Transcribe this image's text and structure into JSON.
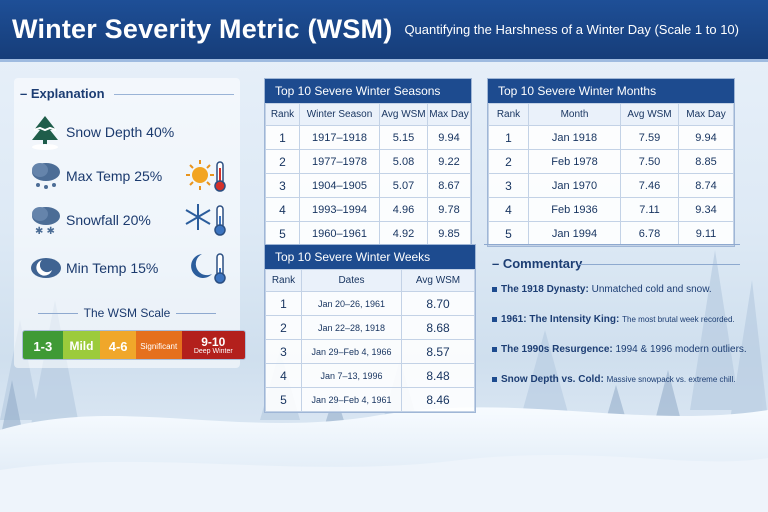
{
  "header": {
    "title": "Winter Severity Metric (WSM)",
    "subtitle": "Quantifying the Harshness of a Winter Day (Scale 1 to 10)"
  },
  "explanation": {
    "heading": "Explanation",
    "factors": [
      {
        "label": "Snow Depth 40%",
        "icon": "pine-tree-icon"
      },
      {
        "label": "Max Temp 25%",
        "icon": "sun-thermometer-icon"
      },
      {
        "label": "Snowfall 20%",
        "icon": "snowflake-thermometer-icon"
      },
      {
        "label": "Min Temp 15%",
        "icon": "moon-thermometer-icon"
      }
    ]
  },
  "scale": {
    "title": "The WSM Scale",
    "segments": [
      {
        "range": "1-3",
        "color": "#3f9a35"
      },
      {
        "range": "Mild",
        "color": "#9ccb3b"
      },
      {
        "range": "4-6",
        "color": "#f0a72a"
      },
      {
        "range": "Significant",
        "color": "#e5701d"
      },
      {
        "range": "9-10",
        "label": "Deep Winter",
        "color": "#b3201c"
      }
    ]
  },
  "seasons": {
    "title": "Top 10 Severe Winter Seasons",
    "columns": [
      "Rank",
      "Winter Season",
      "Avg WSM",
      "Max Day"
    ],
    "rows": [
      [
        "1",
        "1917–1918",
        "5.15",
        "9.94"
      ],
      [
        "2",
        "1977–1978",
        "5.08",
        "9.22"
      ],
      [
        "3",
        "1904–1905",
        "5.07",
        "8.67"
      ],
      [
        "4",
        "1993–1994",
        "4.96",
        "9.78"
      ],
      [
        "5",
        "1960–1961",
        "4.92",
        "9.85"
      ]
    ]
  },
  "months": {
    "title": "Top 10 Severe Winter Months",
    "columns": [
      "Rank",
      "Month",
      "Avg WSM",
      "Max Day"
    ],
    "rows": [
      [
        "1",
        "Jan 1918",
        "7.59",
        "9.94"
      ],
      [
        "2",
        "Feb 1978",
        "7.50",
        "8.85"
      ],
      [
        "3",
        "Jan 1970",
        "7.46",
        "8.74"
      ],
      [
        "4",
        "Feb 1936",
        "7.11",
        "9.34"
      ],
      [
        "5",
        "Jan 1994",
        "6.78",
        "9.11"
      ]
    ]
  },
  "weeks": {
    "title": "Top 10 Severe Winter Weeks",
    "columns": [
      "Rank",
      "Dates",
      "Avg WSM"
    ],
    "rows": [
      [
        "1",
        "Jan 20–26, 1961",
        "8.70"
      ],
      [
        "2",
        "Jan 22–28, 1918",
        "8.68"
      ],
      [
        "3",
        "Jan 29–Feb 4, 1966",
        "8.57"
      ],
      [
        "4",
        "Jan 7–13, 1996",
        "8.48"
      ],
      [
        "5",
        "Jan 29–Feb 4, 1961",
        "8.46"
      ]
    ]
  },
  "commentary": {
    "heading": "Commentary",
    "items": [
      {
        "bold": "The 1918 Dynasty:",
        "text": "Unmatched cold and snow."
      },
      {
        "bold": "1961: The Intensity King:",
        "text": "The most brutal week recorded."
      },
      {
        "bold": "The 1990s Resurgence:",
        "text": "1994 & 1996 modern outliers."
      },
      {
        "bold": "Snow Depth vs. Cold:",
        "text": "Massive snowpack vs. extreme chill."
      }
    ]
  }
}
